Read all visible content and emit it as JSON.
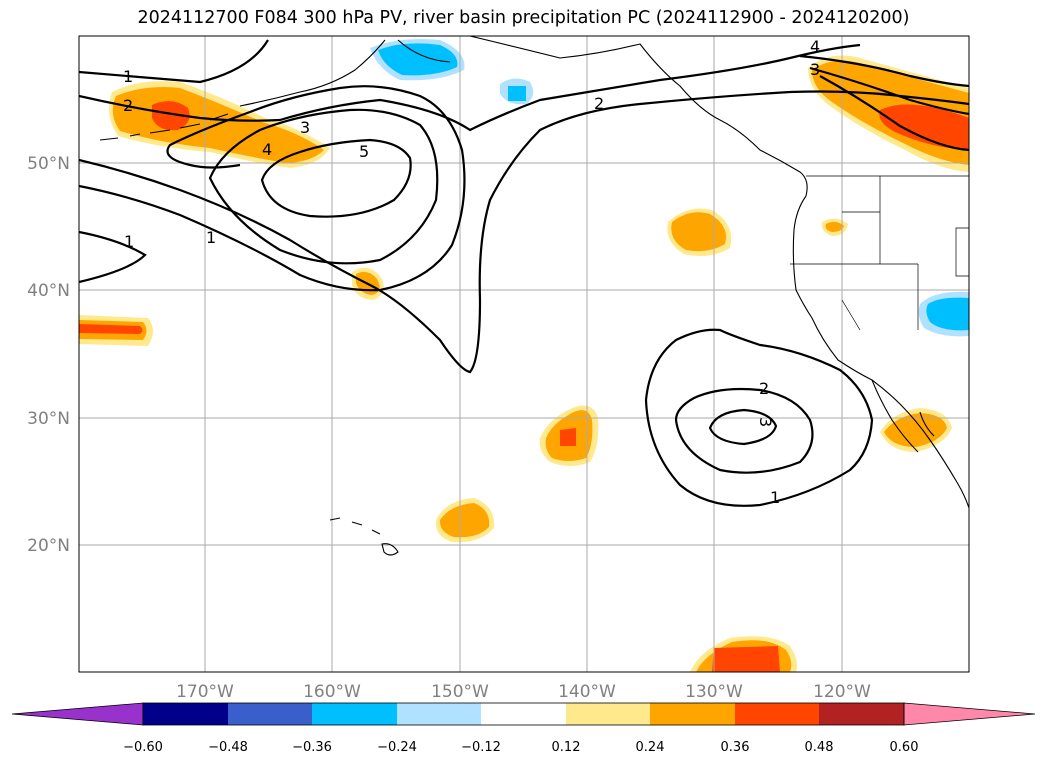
{
  "title": "2024112700 F084 300 hPa PV, river basin precipitation PC (2024112900 - 2024120200)",
  "lon_labels": [
    "170°W",
    "160°W",
    "150°W",
    "140°W",
    "130°W",
    "120°W"
  ],
  "lat_labels": [
    "50°N",
    "40°N",
    "30°N",
    "20°N"
  ],
  "colorbar": {
    "ticks": [
      "−0.60",
      "−0.48",
      "−0.36",
      "−0.24",
      "−0.12",
      "0.12",
      "0.24",
      "0.36",
      "0.48",
      "0.60"
    ],
    "colors": [
      "#9932cc",
      "#00008b",
      "#3a5fcd",
      "#00bfff",
      "#b0e2ff",
      "#ffffff",
      "#ffe98c",
      "#ffa500",
      "#ff4500",
      "#b22222",
      "#ff88aa"
    ]
  },
  "contour_labels": [
    "1",
    "2",
    "3",
    "4",
    "5",
    "1",
    "1",
    "2",
    "3",
    "4",
    "2",
    "3",
    "1"
  ],
  "map_style": {
    "pv_contour_color": "#000000",
    "gridline_color": "#aaaaaa",
    "coastline_color": "#000000"
  }
}
